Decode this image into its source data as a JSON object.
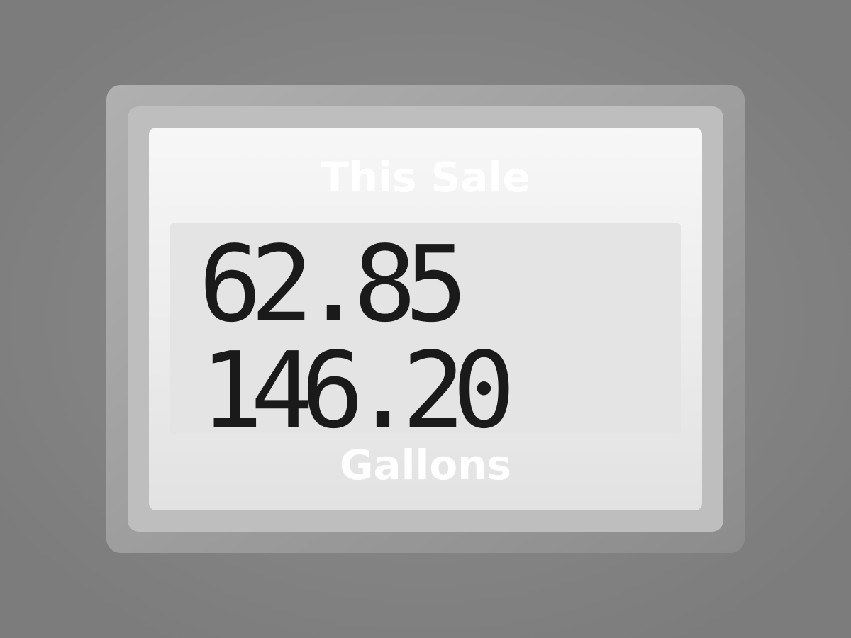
{
  "display": {
    "title": "This Sale",
    "readings": [
      "62.85",
      "146.20"
    ],
    "unit_label": "Gallons"
  }
}
